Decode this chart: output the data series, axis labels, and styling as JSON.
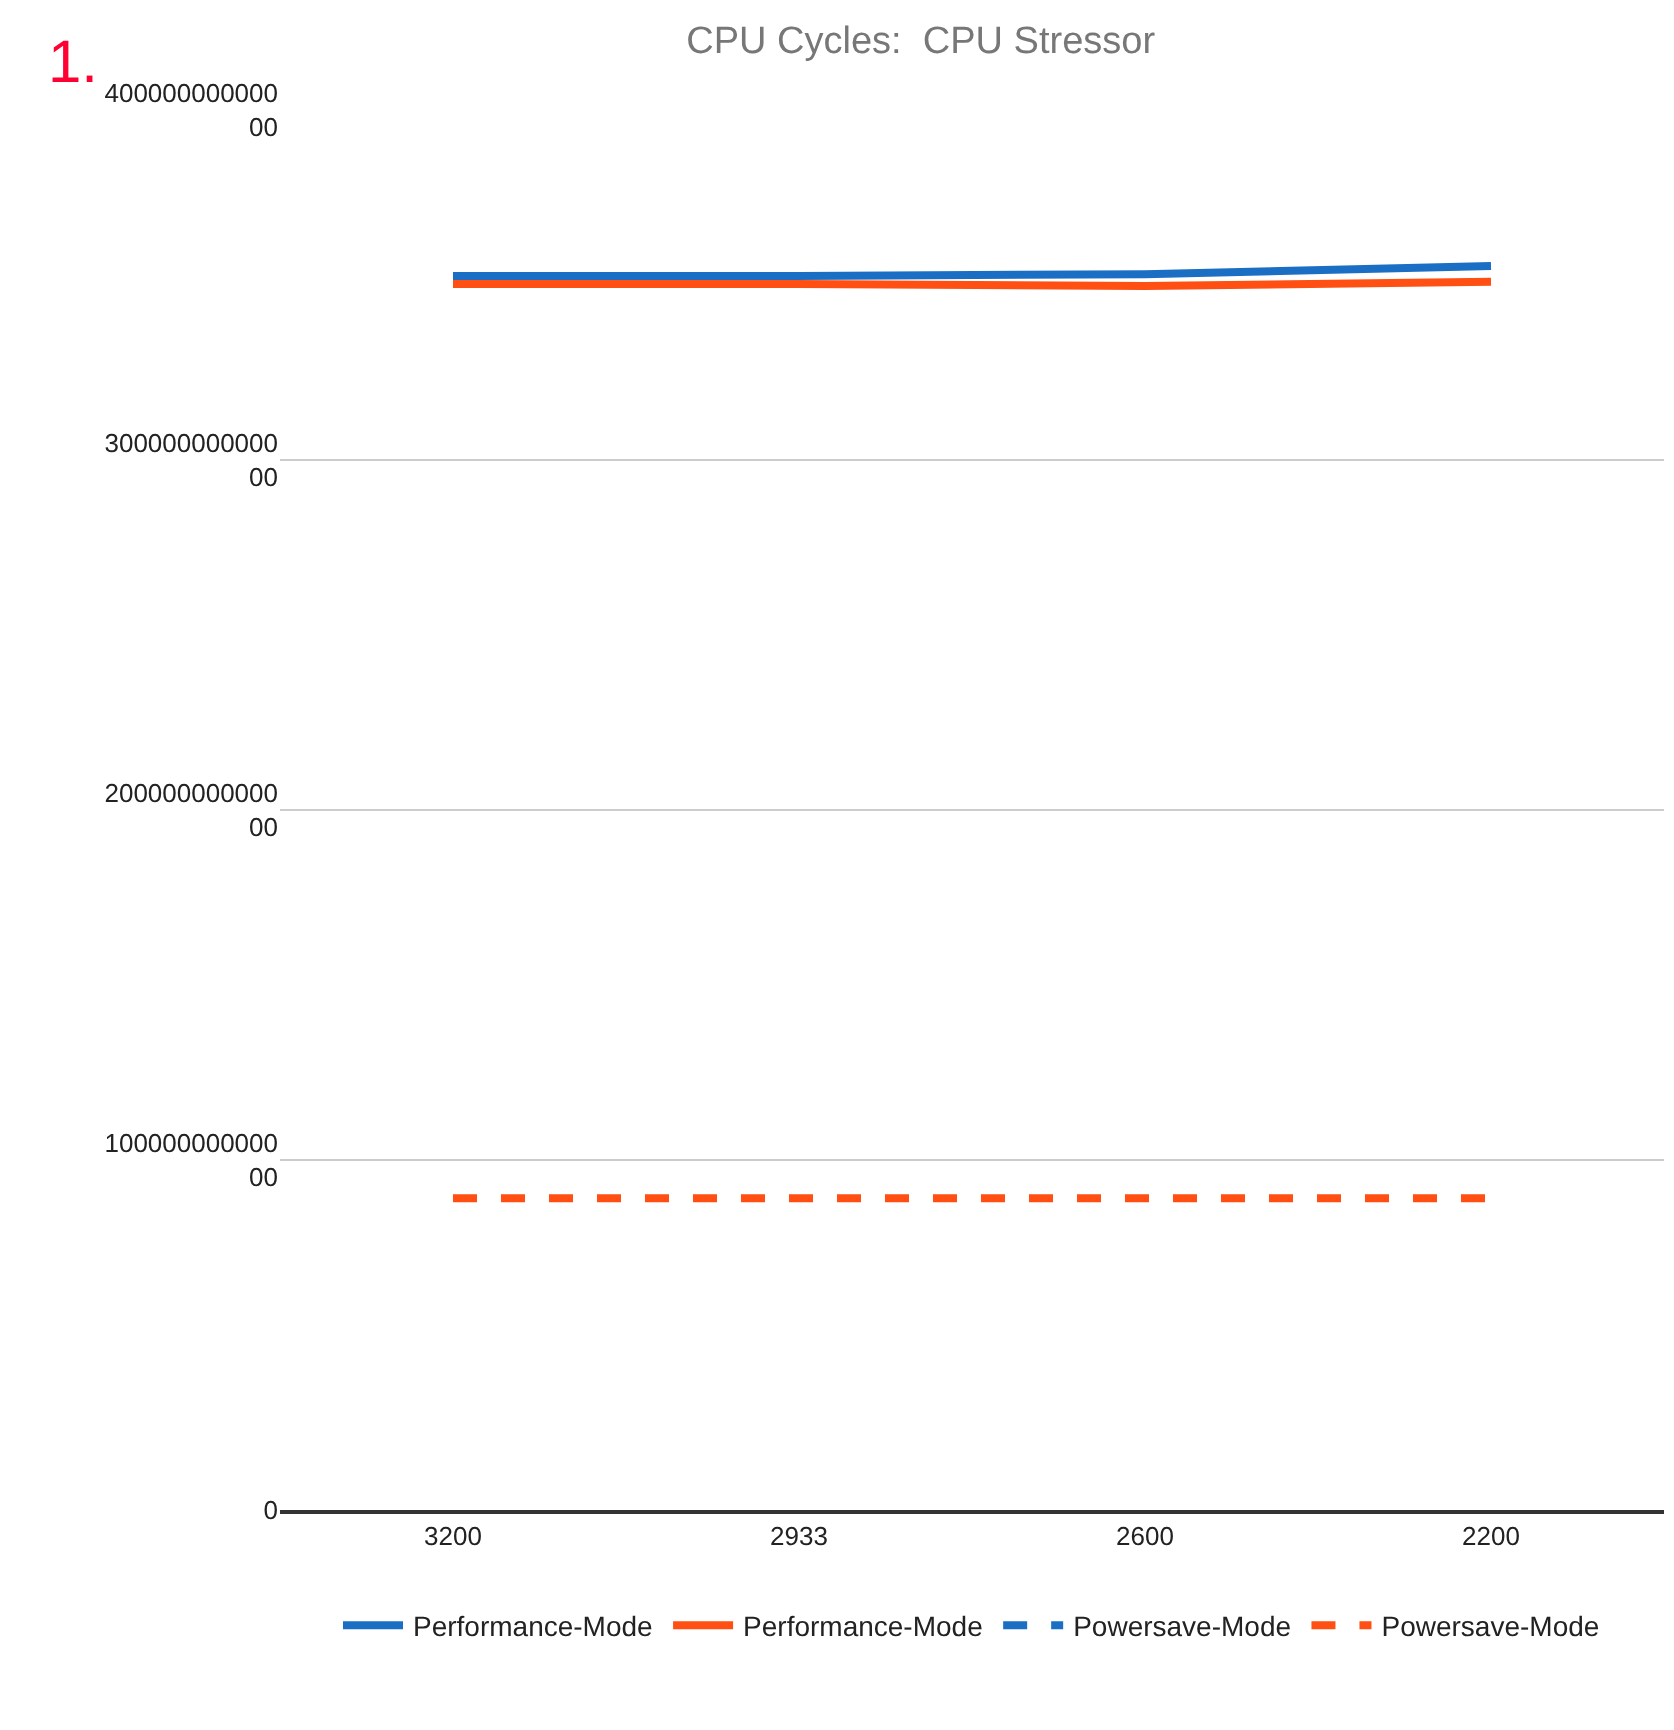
{
  "chart_data": {
    "type": "line",
    "title": "CPU Cycles:  CPU Stressor",
    "categories": [
      "3200",
      "2933",
      "2600",
      "2200"
    ],
    "series": [
      {
        "name": "Performance-Mode",
        "color": "#1a6fc4",
        "line_style": "solid",
        "values": [
          35260000000000,
          35260000000000,
          35310000000000,
          35540000000000
        ]
      },
      {
        "name": "Performance-Mode",
        "color": "#ff4f12",
        "line_style": "solid",
        "values": [
          35030000000000,
          35030000000000,
          34970000000000,
          35090000000000
        ]
      },
      {
        "name": "Powersave-Mode",
        "color": "#1a6fc4",
        "line_style": "dashed",
        "values": [
          null,
          null,
          null,
          null
        ]
      },
      {
        "name": "Powersave-Mode",
        "color": "#ff4f12",
        "line_style": "dashed",
        "values": [
          8910000000000,
          8910000000000,
          8910000000000,
          8910000000000
        ]
      }
    ],
    "ylim": [
      0,
      40000000000000
    ],
    "yticks": [
      0,
      10000000000000,
      20000000000000,
      30000000000000,
      40000000000000
    ],
    "grid": "y",
    "legend": "bottom",
    "marker": "none",
    "annotations": [
      "1."
    ]
  }
}
